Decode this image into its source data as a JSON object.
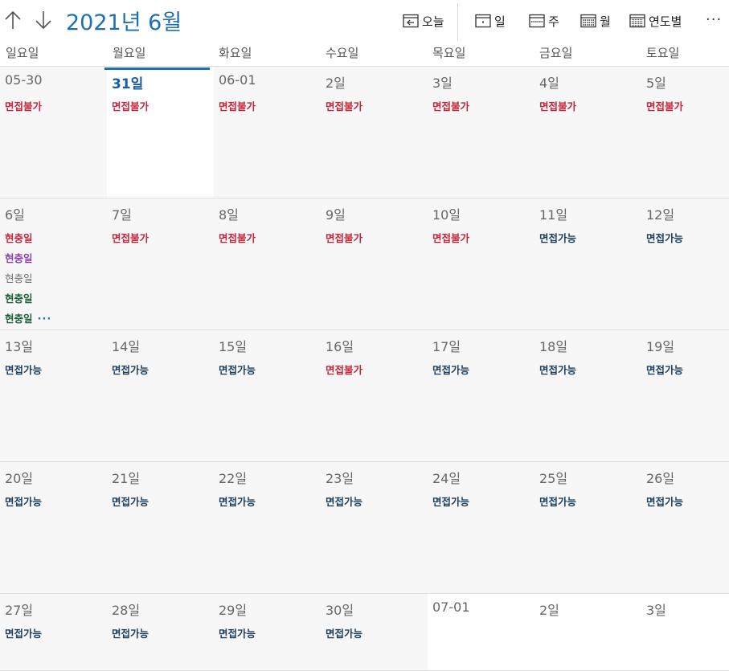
{
  "header": {
    "title": "2021년 6월",
    "today_label": "오늘",
    "day_label": "일",
    "week_label": "주",
    "month_label": "월",
    "year_label": "연도별",
    "more_label": "···"
  },
  "weekdays": [
    "일요일",
    "월요일",
    "화요일",
    "수요일",
    "목요일",
    "금요일",
    "토요일"
  ],
  "colors": {
    "accent": "#1f6fb5",
    "unavailable": "#c4263c",
    "available": "#1d3f5c",
    "purple": "#8e44ad",
    "gray": "#6f6f6f",
    "green": "#1e5e3a"
  },
  "weeks": [
    [
      {
        "label": "05-30",
        "events": [
          {
            "text": "면접불가",
            "color": "#c4263c"
          }
        ]
      },
      {
        "label": "31일",
        "today": true,
        "events": [
          {
            "text": "면접불가",
            "color": "#c4263c"
          }
        ]
      },
      {
        "label": "06-01",
        "events": [
          {
            "text": "면접불가",
            "color": "#c4263c"
          }
        ]
      },
      {
        "label": "2일",
        "events": [
          {
            "text": "면접불가",
            "color": "#c4263c"
          }
        ]
      },
      {
        "label": "3일",
        "events": [
          {
            "text": "면접불가",
            "color": "#c4263c"
          }
        ]
      },
      {
        "label": "4일",
        "events": [
          {
            "text": "면접불가",
            "color": "#c4263c"
          }
        ]
      },
      {
        "label": "5일",
        "events": [
          {
            "text": "면접불가",
            "color": "#c4263c"
          }
        ]
      }
    ],
    [
      {
        "label": "6일",
        "events": [
          {
            "text": "현충일",
            "color": "#c4263c"
          },
          {
            "text": "현충일",
            "color": "#8e44ad"
          },
          {
            "text": "현충일",
            "color": "#6f6f6f",
            "light": true
          },
          {
            "text": "현충일",
            "color": "#1e5e3a"
          },
          {
            "text": "현충일",
            "color": "#1e5e3a"
          }
        ],
        "more": "···"
      },
      {
        "label": "7일",
        "events": [
          {
            "text": "면접불가",
            "color": "#c4263c"
          }
        ]
      },
      {
        "label": "8일",
        "events": [
          {
            "text": "면접불가",
            "color": "#c4263c"
          }
        ]
      },
      {
        "label": "9일",
        "events": [
          {
            "text": "면접불가",
            "color": "#c4263c"
          }
        ]
      },
      {
        "label": "10일",
        "events": [
          {
            "text": "면접불가",
            "color": "#c4263c"
          }
        ]
      },
      {
        "label": "11일",
        "events": [
          {
            "text": "면접가능",
            "color": "#1d3f5c"
          }
        ]
      },
      {
        "label": "12일",
        "events": [
          {
            "text": "면접가능",
            "color": "#1d3f5c"
          }
        ]
      }
    ],
    [
      {
        "label": "13일",
        "events": [
          {
            "text": "면접가능",
            "color": "#1d3f5c"
          }
        ]
      },
      {
        "label": "14일",
        "events": [
          {
            "text": "면접가능",
            "color": "#1d3f5c"
          }
        ]
      },
      {
        "label": "15일",
        "events": [
          {
            "text": "면접가능",
            "color": "#1d3f5c"
          }
        ]
      },
      {
        "label": "16일",
        "events": [
          {
            "text": "면접불가",
            "color": "#c4263c"
          }
        ]
      },
      {
        "label": "17일",
        "events": [
          {
            "text": "면접가능",
            "color": "#1d3f5c"
          }
        ]
      },
      {
        "label": "18일",
        "events": [
          {
            "text": "면접가능",
            "color": "#1d3f5c"
          }
        ]
      },
      {
        "label": "19일",
        "events": [
          {
            "text": "면접가능",
            "color": "#1d3f5c"
          }
        ]
      }
    ],
    [
      {
        "label": "20일",
        "events": [
          {
            "text": "면접가능",
            "color": "#1d3f5c"
          }
        ]
      },
      {
        "label": "21일",
        "events": [
          {
            "text": "면접가능",
            "color": "#1d3f5c"
          }
        ]
      },
      {
        "label": "22일",
        "events": [
          {
            "text": "면접가능",
            "color": "#1d3f5c"
          }
        ]
      },
      {
        "label": "23일",
        "events": [
          {
            "text": "면접가능",
            "color": "#1d3f5c"
          }
        ]
      },
      {
        "label": "24일",
        "events": [
          {
            "text": "면접가능",
            "color": "#1d3f5c"
          }
        ]
      },
      {
        "label": "25일",
        "events": [
          {
            "text": "면접가능",
            "color": "#1d3f5c"
          }
        ]
      },
      {
        "label": "26일",
        "events": [
          {
            "text": "면접가능",
            "color": "#1d3f5c"
          }
        ]
      }
    ],
    [
      {
        "label": "27일",
        "events": [
          {
            "text": "면접가능",
            "color": "#1d3f5c"
          }
        ]
      },
      {
        "label": "28일",
        "events": [
          {
            "text": "면접가능",
            "color": "#1d3f5c"
          }
        ]
      },
      {
        "label": "29일",
        "events": [
          {
            "text": "면접가능",
            "color": "#1d3f5c"
          }
        ]
      },
      {
        "label": "30일",
        "events": [
          {
            "text": "면접가능",
            "color": "#1d3f5c"
          }
        ]
      },
      {
        "label": "07-01",
        "outside": true,
        "events": []
      },
      {
        "label": "2일",
        "outside": true,
        "events": []
      },
      {
        "label": "3일",
        "outside": true,
        "events": []
      }
    ]
  ]
}
